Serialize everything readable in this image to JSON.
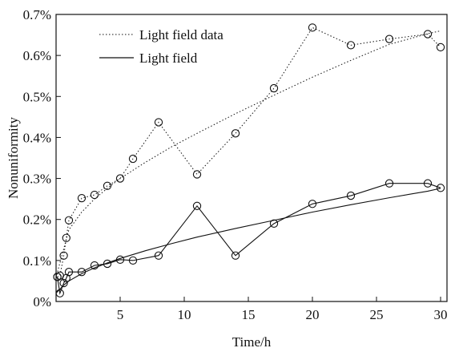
{
  "chart_data": {
    "type": "line",
    "xlabel": "Time/h",
    "ylabel": "Nonuniformity",
    "xlim": [
      0,
      30.5
    ],
    "ylim": [
      0,
      0.7
    ],
    "xticks": [
      5,
      10,
      15,
      20,
      25,
      30
    ],
    "xtick_labels": [
      "5",
      "10",
      "15",
      "20",
      "25",
      "30"
    ],
    "yticks": [
      0,
      0.1,
      0.2,
      0.3,
      0.4,
      0.5,
      0.6,
      0.7
    ],
    "ytick_labels": [
      "0%",
      "0.1%",
      "0.2%",
      "0.3%",
      "0.4%",
      "0.5%",
      "0.6%",
      "0.7%"
    ],
    "grid": false,
    "legend_position": "top-left",
    "legend": [
      {
        "label": "Light field data",
        "style": "dotted"
      },
      {
        "label": "Light field",
        "style": "solid"
      }
    ],
    "series": [
      {
        "legend_index": 0,
        "style": "dotted",
        "markers": true,
        "x": [
          0.1,
          0.3,
          0.6,
          0.8,
          1,
          2,
          3,
          4,
          5,
          6,
          8,
          11,
          14,
          17,
          20,
          23,
          26,
          29,
          30
        ],
        "y": [
          0.06,
          0.063,
          0.112,
          0.155,
          0.198,
          0.252,
          0.26,
          0.282,
          0.3,
          0.348,
          0.437,
          0.31,
          0.41,
          0.52,
          0.668,
          0.625,
          0.64,
          0.652,
          0.62
        ]
      },
      {
        "legend_index": null,
        "style": "dotted",
        "markers": false,
        "x": [
          0.05,
          1,
          2,
          3,
          4,
          5,
          7,
          9,
          11,
          14,
          17,
          20,
          23,
          26,
          29,
          30
        ],
        "y": [
          0.065,
          0.175,
          0.218,
          0.25,
          0.276,
          0.3,
          0.34,
          0.377,
          0.41,
          0.458,
          0.503,
          0.547,
          0.588,
          0.627,
          0.653,
          0.66
        ]
      },
      {
        "legend_index": null,
        "style": "solid",
        "markers": true,
        "x": [
          0.1,
          0.3,
          0.6,
          0.8,
          1,
          2,
          3,
          4,
          5,
          6,
          8,
          11,
          14,
          17,
          20,
          23,
          26,
          29,
          30
        ],
        "y": [
          0.06,
          0.02,
          0.045,
          0.057,
          0.072,
          0.072,
          0.088,
          0.092,
          0.102,
          0.1,
          0.112,
          0.233,
          0.112,
          0.19,
          0.238,
          0.258,
          0.288,
          0.288,
          0.277
        ]
      },
      {
        "legend_index": 1,
        "style": "solid",
        "markers": false,
        "x": [
          0.05,
          0.3,
          0.6,
          1,
          2,
          3,
          4,
          5,
          7,
          9,
          11,
          14,
          17,
          20,
          23,
          26,
          29,
          30
        ],
        "y": [
          0.022,
          0.03,
          0.04,
          0.05,
          0.068,
          0.082,
          0.094,
          0.105,
          0.124,
          0.141,
          0.157,
          0.178,
          0.198,
          0.218,
          0.236,
          0.253,
          0.269,
          0.276
        ]
      }
    ]
  }
}
